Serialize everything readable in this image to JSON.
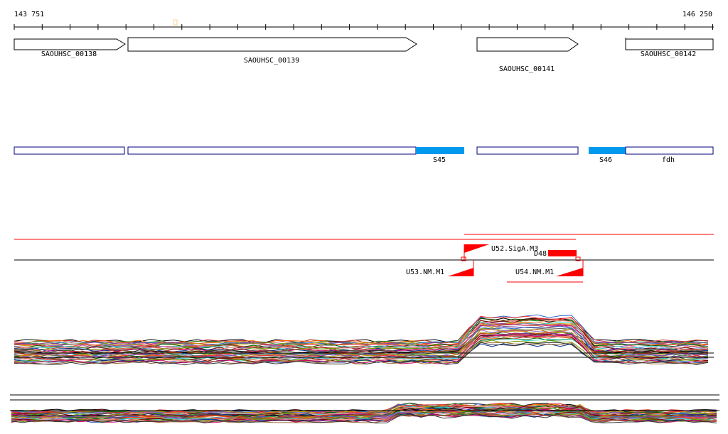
{
  "coords": {
    "start_label": "143 751",
    "end_label": "146 250"
  },
  "genes": [
    {
      "id": "g138",
      "label": "SAOUHSC_00138"
    },
    {
      "id": "g139",
      "label": "SAOUHSC_00139"
    },
    {
      "id": "g141",
      "label": "SAOUHSC_00141"
    },
    {
      "id": "g142",
      "label": "SAOUHSC_00142"
    }
  ],
  "segments": [
    {
      "id": "s45",
      "label": "S45"
    },
    {
      "id": "s46",
      "label": "S46"
    },
    {
      "id": "fdh",
      "label": "fdh"
    }
  ],
  "features": [
    {
      "id": "u52",
      "label": "U52.SigA.M3"
    },
    {
      "id": "d48",
      "label": "D48"
    },
    {
      "id": "u53",
      "label": "U53.NM.M1"
    },
    {
      "id": "u54",
      "label": "U54.NM.M1"
    }
  ],
  "colors": {
    "axis": "#000000",
    "segment_outline": "#000080",
    "segment_fill": "#0099ee",
    "feature": "#ff0000",
    "tick_marker": "#ffcc99"
  },
  "expression_profiles": {
    "track1_series_count": 40,
    "track2_series_count": 40
  }
}
